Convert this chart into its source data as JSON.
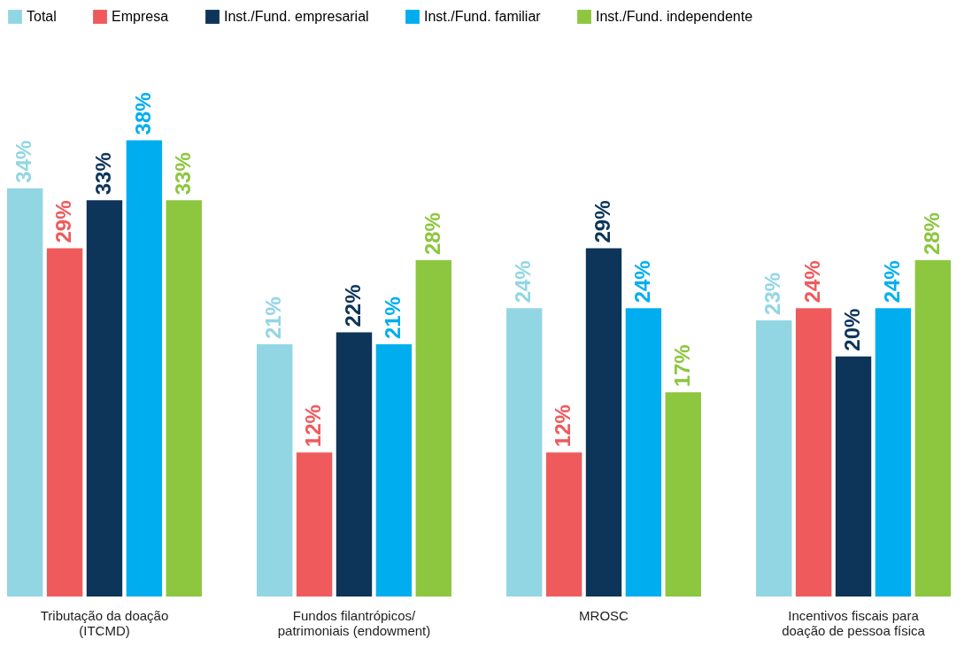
{
  "chart_data": {
    "type": "bar",
    "categories": [
      "Tributação da doação (ITCMD)",
      "Fundos filantrópicos/ patrimoniais (endowment)",
      "MROSC",
      "Incentivos fiscais para doação de pessoa física"
    ],
    "series": [
      {
        "name": "Total",
        "color": "#93d6e3",
        "values": [
          34,
          21,
          24,
          23
        ],
        "value_labels": [
          "34%",
          "21%",
          "24%",
          "23%"
        ]
      },
      {
        "name": "Empresa",
        "color": "#ef5a5d",
        "values": [
          29,
          12,
          12,
          24
        ],
        "value_labels": [
          "29%",
          "12%",
          "12%",
          "24%"
        ]
      },
      {
        "name": "Inst./Fund. empresarial",
        "color": "#0d3459",
        "values": [
          33,
          22,
          29,
          20
        ],
        "value_labels": [
          "33%",
          "22%",
          "29%",
          "20%"
        ]
      },
      {
        "name": "Inst./Fund. familiar",
        "color": "#00aeef",
        "values": [
          38,
          21,
          24,
          24
        ],
        "value_labels": [
          "38%",
          "21%",
          "24%",
          "24%"
        ]
      },
      {
        "name": "Inst./Fund. independente",
        "color": "#8dc63f",
        "values": [
          33,
          28,
          17,
          28
        ],
        "value_labels": [
          "33%",
          "28%",
          "17%",
          "28%"
        ]
      }
    ],
    "legend": "top"
  }
}
